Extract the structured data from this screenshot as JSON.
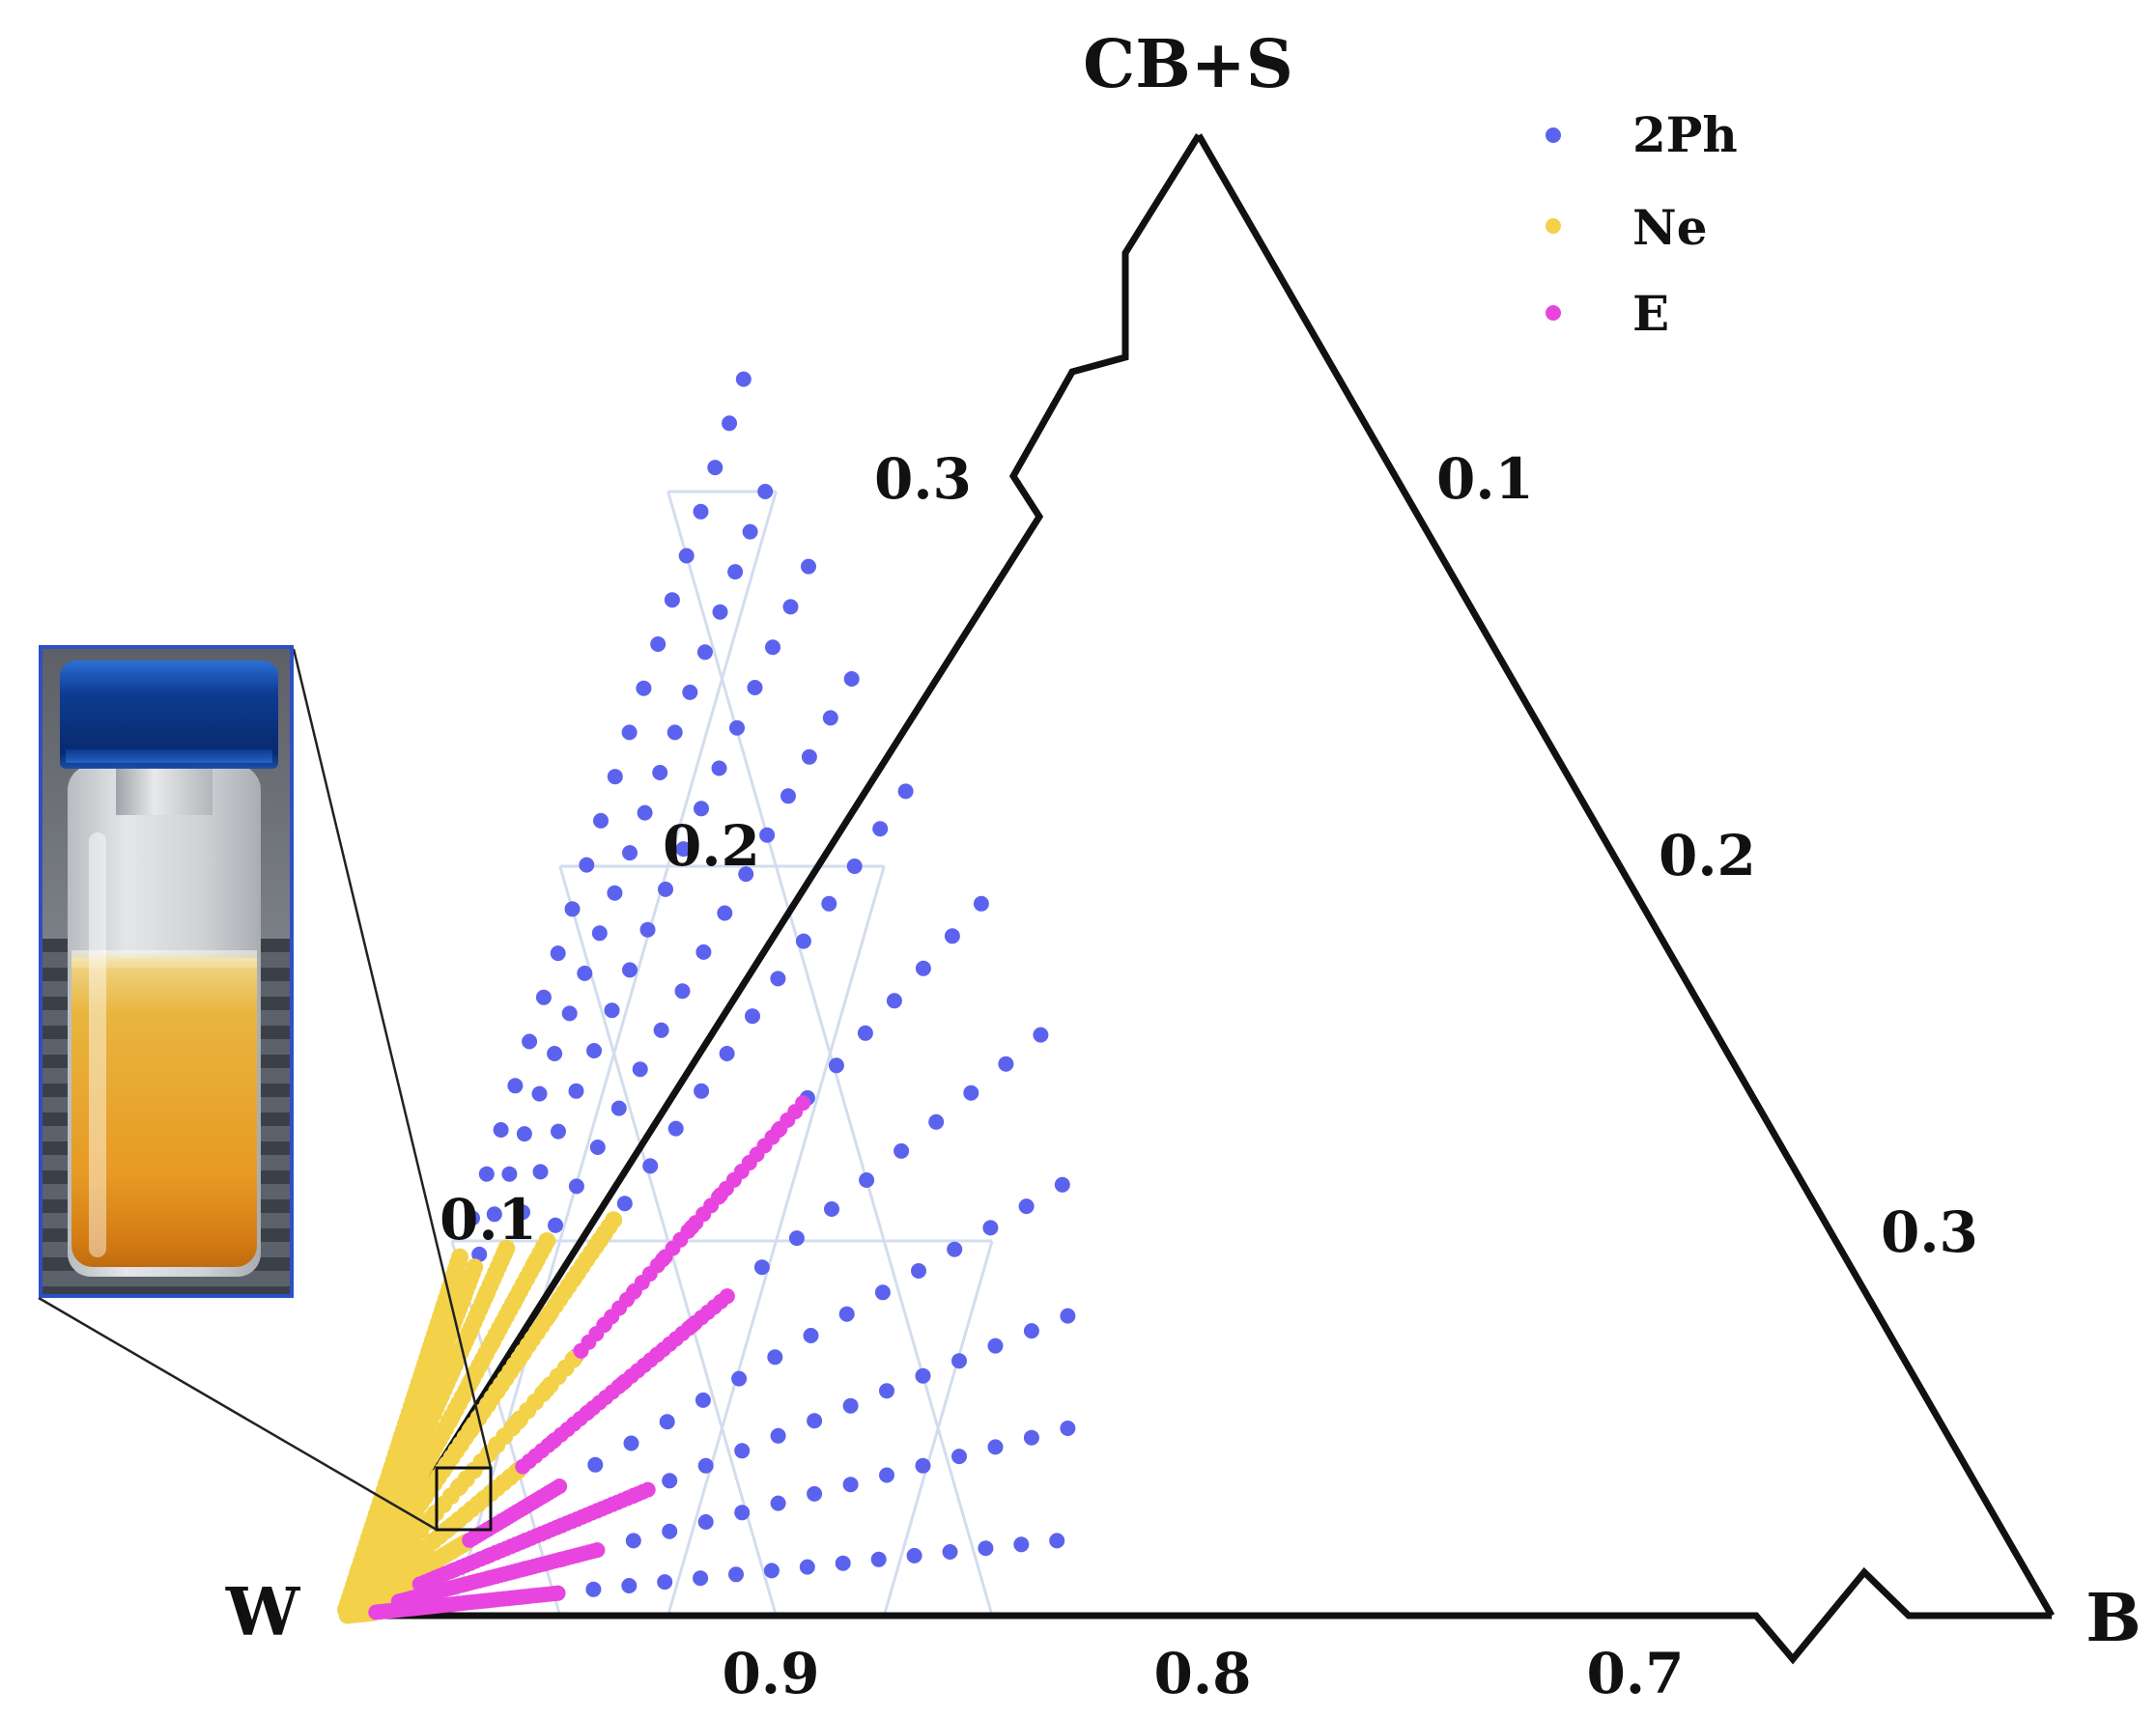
{
  "chart_data": {
    "type": "scatter",
    "subtype": "ternary",
    "corner_labels": {
      "top": "CB+S",
      "left": "W",
      "right": "B"
    },
    "left_axis_ticks": [
      "0.1",
      "0.2",
      "0.3"
    ],
    "right_axis_ticks": [
      "0.1",
      "0.2",
      "0.3"
    ],
    "bottom_axis_ticks": [
      "0.9",
      "0.8",
      "0.7"
    ],
    "axis_ranges": {
      "W": [
        0.65,
        1.0
      ],
      "B": [
        0.0,
        0.35
      ],
      "CB+S": [
        0.0,
        0.35
      ]
    },
    "grid": true,
    "legend": {
      "position": "top-right",
      "entries": [
        {
          "label": "2Ph",
          "color": "#5b63ee"
        },
        {
          "label": "Ne",
          "color": "#f3d24a"
        },
        {
          "label": "E",
          "color": "#e845e0"
        }
      ]
    },
    "colors": {
      "2Ph": "#5b63ee",
      "Ne": "#f3d24a",
      "E": "#e845e0",
      "grid": "#d3ddee",
      "inset_border": "#2e4fc7"
    },
    "series_rays": [
      {
        "x_end": 0.02,
        "y_end": 0.33,
        "steps": 28,
        "ne_until": 0.29,
        "e_range": null
      },
      {
        "x_end": 0.045,
        "y_end": 0.3,
        "steps": 28,
        "ne_until": 0.31,
        "e_range": null
      },
      {
        "x_end": 0.075,
        "y_end": 0.28,
        "steps": 26,
        "ne_until": 0.35,
        "e_range": null
      },
      {
        "x_end": 0.11,
        "y_end": 0.25,
        "steps": 24,
        "ne_until": 0.4,
        "e_range": null
      },
      {
        "x_end": 0.15,
        "y_end": 0.22,
        "steps": 22,
        "ne_until": 0.48,
        "e_range": null
      },
      {
        "x_end": 0.2,
        "y_end": 0.19,
        "steps": 22,
        "ne_until": 0.36,
        "e_range": [
          0.36,
          0.72
        ]
      },
      {
        "x_end": 0.245,
        "y_end": 0.155,
        "steps": 20,
        "ne_until": 0.25,
        "e_range": [
          0.25,
          0.55
        ]
      },
      {
        "x_end": 0.275,
        "y_end": 0.115,
        "steps": 20,
        "ne_until": 0.17,
        "e_range": [
          0.17,
          0.3
        ]
      },
      {
        "x_end": 0.295,
        "y_end": 0.08,
        "steps": 20,
        "ne_until": 0.1,
        "e_range": [
          0.1,
          0.42
        ]
      },
      {
        "x_end": 0.31,
        "y_end": 0.05,
        "steps": 20,
        "ne_until": 0.07,
        "e_range": [
          0.07,
          0.35
        ]
      },
      {
        "x_end": 0.32,
        "y_end": 0.02,
        "steps": 20,
        "ne_until": 0.04,
        "e_range": [
          0.04,
          0.3
        ]
      }
    ]
  }
}
